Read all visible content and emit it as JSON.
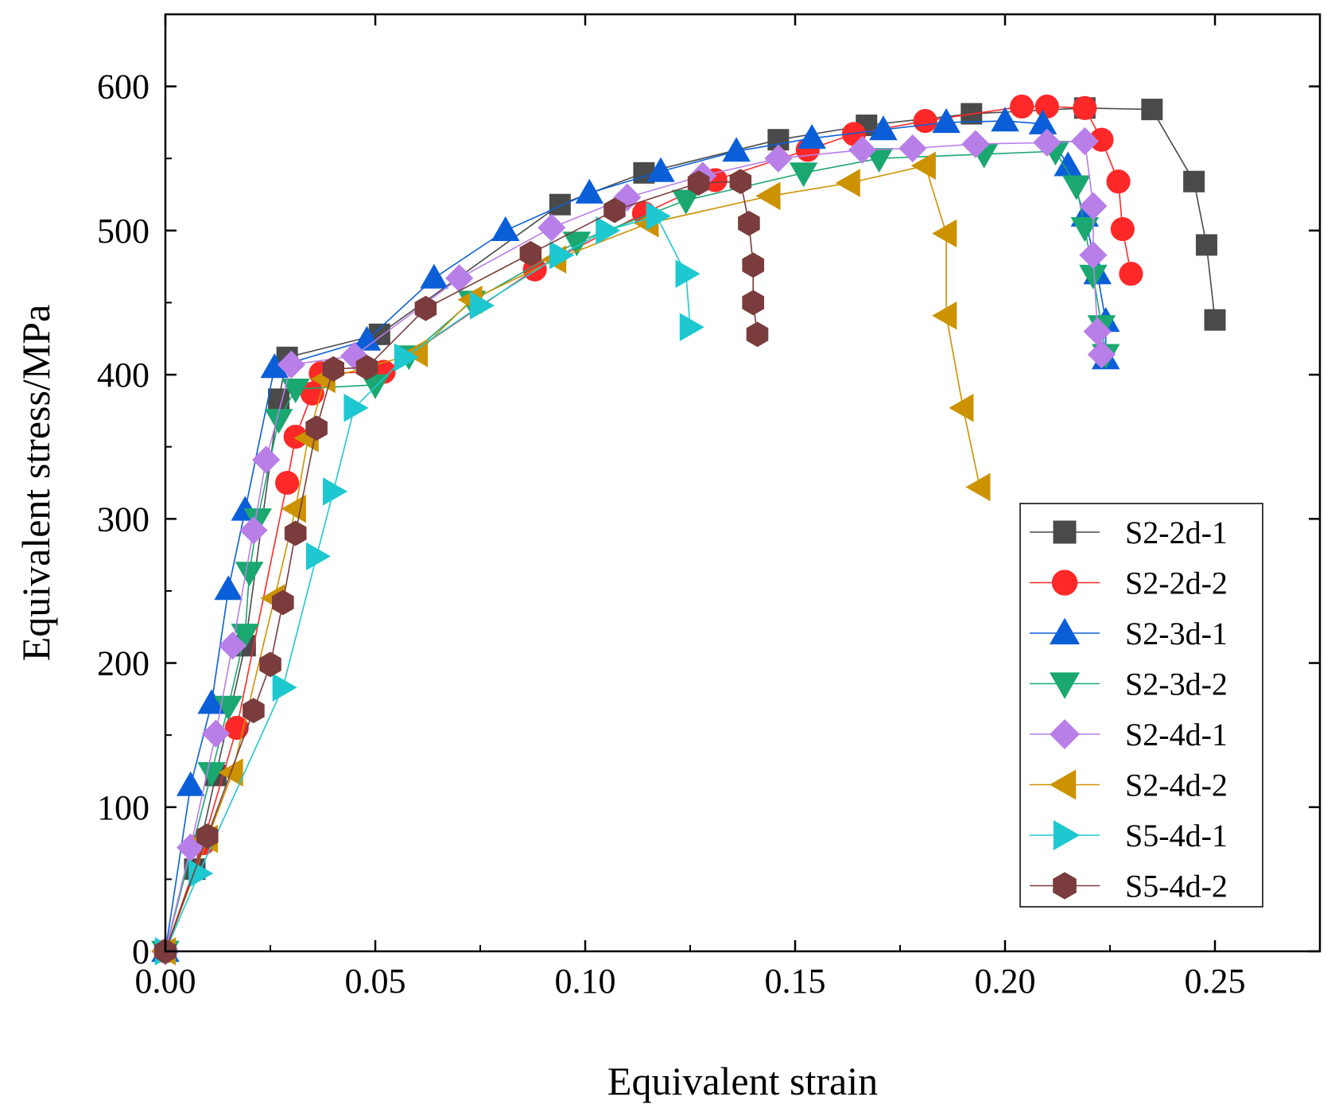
{
  "chart_data": {
    "type": "line",
    "title": "",
    "xlabel": "Equivalent strain",
    "ylabel": "Equivalent stress/MPa",
    "xlim": [
      0,
      0.275
    ],
    "ylim": [
      0,
      650
    ],
    "xticks": [
      0,
      0.05,
      0.1,
      0.15,
      0.2,
      0.25
    ],
    "xtick_labels": [
      "0.00",
      "0.05",
      "0.10",
      "0.15",
      "0.20",
      "0.25"
    ],
    "yticks": [
      0,
      100,
      200,
      300,
      400,
      500,
      600
    ],
    "ytick_labels": [
      "0",
      "100",
      "200",
      "300",
      "400",
      "500",
      "600"
    ],
    "grid": false,
    "legend_position": "bottom-right",
    "series": [
      {
        "name": "S2-2d-1",
        "color": "#4a4a4a",
        "marker": "square",
        "points": [
          [
            0,
            0
          ],
          [
            0.007,
            57
          ],
          [
            0.012,
            122
          ],
          [
            0.019,
            212
          ],
          [
            0.027,
            383
          ],
          [
            0.029,
            412
          ],
          [
            0.051,
            428
          ],
          [
            0.094,
            518
          ],
          [
            0.114,
            540
          ],
          [
            0.146,
            563
          ],
          [
            0.167,
            573
          ],
          [
            0.192,
            581
          ],
          [
            0.219,
            585
          ],
          [
            0.235,
            584
          ],
          [
            0.245,
            534
          ],
          [
            0.248,
            490
          ],
          [
            0.25,
            438
          ]
        ]
      },
      {
        "name": "S2-2d-2",
        "color": "#ff2828",
        "marker": "circle",
        "points": [
          [
            0,
            0
          ],
          [
            0.009,
            75
          ],
          [
            0.017,
            155
          ],
          [
            0.029,
            325
          ],
          [
            0.031,
            357
          ],
          [
            0.035,
            387
          ],
          [
            0.037,
            401
          ],
          [
            0.052,
            402
          ],
          [
            0.088,
            473
          ],
          [
            0.114,
            512
          ],
          [
            0.131,
            535
          ],
          [
            0.153,
            556
          ],
          [
            0.164,
            567
          ],
          [
            0.181,
            576
          ],
          [
            0.204,
            586
          ],
          [
            0.21,
            586
          ],
          [
            0.219,
            585
          ],
          [
            0.223,
            563
          ],
          [
            0.227,
            534
          ],
          [
            0.228,
            501
          ],
          [
            0.23,
            470
          ]
        ]
      },
      {
        "name": "S2-3d-1",
        "color": "#0a5fd8",
        "marker": "triangle-up",
        "points": [
          [
            0,
            0
          ],
          [
            0.006,
            115
          ],
          [
            0.011,
            172
          ],
          [
            0.015,
            251
          ],
          [
            0.019,
            306
          ],
          [
            0.026,
            405
          ],
          [
            0.048,
            424
          ],
          [
            0.064,
            467
          ],
          [
            0.081,
            500
          ],
          [
            0.101,
            526
          ],
          [
            0.118,
            541
          ],
          [
            0.136,
            555
          ],
          [
            0.154,
            564
          ],
          [
            0.171,
            570
          ],
          [
            0.186,
            575
          ],
          [
            0.2,
            576
          ],
          [
            0.209,
            574
          ],
          [
            0.215,
            545
          ],
          [
            0.219,
            510
          ],
          [
            0.222,
            470
          ],
          [
            0.224,
            437
          ],
          [
            0.224,
            411
          ]
        ]
      },
      {
        "name": "S2-3d-2",
        "color": "#1aa870",
        "marker": "triangle-down",
        "points": [
          [
            0,
            0
          ],
          [
            0.011,
            124
          ],
          [
            0.015,
            170
          ],
          [
            0.019,
            220
          ],
          [
            0.02,
            263
          ],
          [
            0.022,
            300
          ],
          [
            0.027,
            369
          ],
          [
            0.031,
            390
          ],
          [
            0.05,
            393
          ],
          [
            0.058,
            413
          ],
          [
            0.073,
            451
          ],
          [
            0.098,
            492
          ],
          [
            0.124,
            521
          ],
          [
            0.152,
            540
          ],
          [
            0.17,
            550
          ],
          [
            0.195,
            553
          ],
          [
            0.212,
            555
          ],
          [
            0.217,
            531
          ],
          [
            0.219,
            502
          ],
          [
            0.221,
            469
          ],
          [
            0.223,
            434
          ],
          [
            0.224,
            414
          ]
        ]
      },
      {
        "name": "S2-4d-1",
        "color": "#b87fe8",
        "marker": "diamond",
        "points": [
          [
            0,
            0
          ],
          [
            0.006,
            72
          ],
          [
            0.012,
            151
          ],
          [
            0.016,
            212
          ],
          [
            0.021,
            292
          ],
          [
            0.024,
            341
          ],
          [
            0.03,
            407
          ],
          [
            0.045,
            413
          ],
          [
            0.07,
            467
          ],
          [
            0.092,
            502
          ],
          [
            0.11,
            523
          ],
          [
            0.128,
            538
          ],
          [
            0.146,
            550
          ],
          [
            0.166,
            556
          ],
          [
            0.178,
            557
          ],
          [
            0.193,
            560
          ],
          [
            0.21,
            561
          ],
          [
            0.219,
            562
          ],
          [
            0.221,
            517
          ],
          [
            0.221,
            483
          ],
          [
            0.222,
            430
          ],
          [
            0.223,
            414
          ]
        ]
      },
      {
        "name": "S2-4d-2",
        "color": "#cc9200",
        "marker": "triangle-left",
        "points": [
          [
            0,
            0
          ],
          [
            0.01,
            78
          ],
          [
            0.016,
            124
          ],
          [
            0.026,
            245
          ],
          [
            0.031,
            307
          ],
          [
            0.034,
            356
          ],
          [
            0.038,
            397
          ],
          [
            0.06,
            415
          ],
          [
            0.073,
            452
          ],
          [
            0.093,
            480
          ],
          [
            0.115,
            505
          ],
          [
            0.144,
            524
          ],
          [
            0.163,
            533
          ],
          [
            0.181,
            545
          ],
          [
            0.186,
            498
          ],
          [
            0.186,
            441
          ],
          [
            0.19,
            377
          ],
          [
            0.194,
            322
          ]
        ]
      },
      {
        "name": "S5-4d-1",
        "color": "#1ec8d0",
        "marker": "triangle-right",
        "points": [
          [
            0,
            0
          ],
          [
            0.008,
            54
          ],
          [
            0.028,
            183
          ],
          [
            0.036,
            274
          ],
          [
            0.04,
            319
          ],
          [
            0.045,
            377
          ],
          [
            0.057,
            412
          ],
          [
            0.075,
            448
          ],
          [
            0.094,
            483
          ],
          [
            0.105,
            500
          ],
          [
            0.117,
            510
          ],
          [
            0.124,
            470
          ],
          [
            0.125,
            433
          ]
        ]
      },
      {
        "name": "S5-4d-2",
        "color": "#7a3c3c",
        "marker": "hexagon",
        "points": [
          [
            0,
            0
          ],
          [
            0.01,
            80
          ],
          [
            0.021,
            167
          ],
          [
            0.025,
            199
          ],
          [
            0.028,
            242
          ],
          [
            0.031,
            290
          ],
          [
            0.036,
            363
          ],
          [
            0.04,
            404
          ],
          [
            0.048,
            405
          ],
          [
            0.062,
            446
          ],
          [
            0.087,
            484
          ],
          [
            0.107,
            514
          ],
          [
            0.127,
            533
          ],
          [
            0.137,
            534
          ],
          [
            0.139,
            505
          ],
          [
            0.14,
            476
          ],
          [
            0.14,
            450
          ],
          [
            0.141,
            428
          ]
        ]
      }
    ]
  }
}
